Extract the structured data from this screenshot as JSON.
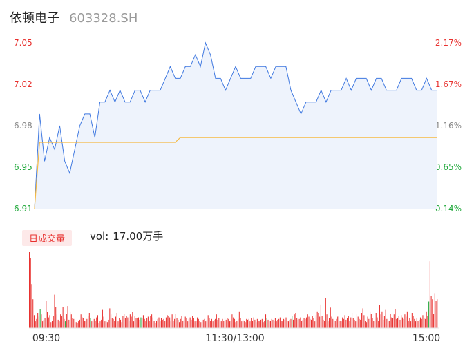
{
  "header": {
    "name": "依顿电子",
    "code": "603328.SH"
  },
  "colors": {
    "up": "#e8312f",
    "down": "#1fa83a",
    "price_line": "#3f78e0",
    "avg_line": "#f5b942",
    "neutral": "#888888"
  },
  "volume_panel": {
    "tag": "日成交量",
    "label": "vol:",
    "value": "17.00万手"
  },
  "chart_data": [
    {
      "type": "line",
      "title": "",
      "y_left_ticks": [
        "7.05",
        "7.02",
        "6.98",
        "6.95",
        "6.91"
      ],
      "y_right_ticks": [
        "2.17%",
        "1.67%",
        "1.16%",
        "0.65%",
        "0.14%"
      ],
      "ylim": [
        6.91,
        7.05
      ],
      "x_ticks": [
        "09:30",
        "11:30/13:00",
        "15:00"
      ],
      "x": [
        0,
        3,
        6,
        9,
        12,
        15,
        18,
        21,
        24,
        27,
        30,
        33,
        36,
        39,
        42,
        45,
        48,
        51,
        54,
        57,
        60,
        63,
        66,
        69,
        72,
        75,
        78,
        81,
        84,
        87,
        90,
        93,
        96,
        99,
        102,
        105,
        108,
        111,
        114,
        117,
        120,
        123,
        126,
        129,
        132,
        135,
        138,
        141,
        144,
        147,
        150,
        153,
        156,
        159,
        162,
        165,
        168,
        171,
        174,
        177,
        180,
        183,
        186,
        189,
        192,
        195,
        198,
        201,
        204,
        207,
        210,
        213,
        216,
        219,
        222,
        225,
        228,
        231,
        234,
        237,
        240
      ],
      "series": [
        {
          "values": [
            6.91,
            6.99,
            6.95,
            6.97,
            6.96,
            6.98,
            6.95,
            6.94,
            6.96,
            6.98,
            6.99,
            6.99,
            6.97,
            7.0,
            7.0,
            7.01,
            7.0,
            7.01,
            7.0,
            7.0,
            7.01,
            7.01,
            7.0,
            7.01,
            7.01,
            7.01,
            7.02,
            7.03,
            7.02,
            7.02,
            7.03,
            7.03,
            7.04,
            7.03,
            7.05,
            7.04,
            7.02,
            7.02,
            7.01,
            7.02,
            7.03,
            7.02,
            7.02,
            7.02,
            7.03,
            7.03,
            7.03,
            7.02,
            7.03,
            7.03,
            7.03,
            7.01,
            7.0,
            6.99,
            7.0,
            7.0,
            7.0,
            7.01,
            7.0,
            7.01,
            7.01,
            7.01,
            7.02,
            7.01,
            7.02,
            7.02,
            7.02,
            7.01,
            7.02,
            7.02,
            7.01,
            7.01,
            7.01,
            7.02,
            7.02,
            7.02,
            7.01,
            7.01,
            7.02,
            7.01,
            7.01
          ]
        },
        {
          "values": [
            6.91,
            6.966,
            6.966,
            6.966,
            6.966,
            6.966,
            6.966,
            6.966,
            6.966,
            6.966,
            6.966,
            6.966,
            6.966,
            6.966,
            6.966,
            6.966,
            6.966,
            6.966,
            6.966,
            6.966,
            6.966,
            6.966,
            6.966,
            6.966,
            6.966,
            6.966,
            6.966,
            6.966,
            6.966,
            6.97,
            6.97,
            6.97,
            6.97,
            6.97,
            6.97,
            6.97,
            6.97,
            6.97,
            6.97,
            6.97,
            6.97,
            6.97,
            6.97,
            6.97,
            6.97,
            6.97,
            6.97,
            6.97,
            6.97,
            6.97,
            6.97,
            6.97,
            6.97,
            6.97,
            6.97,
            6.97,
            6.97,
            6.97,
            6.97,
            6.97,
            6.97,
            6.97,
            6.97,
            6.97,
            6.97,
            6.97,
            6.97,
            6.97,
            6.97,
            6.97,
            6.97,
            6.97,
            6.97,
            6.97,
            6.97,
            6.97,
            6.97,
            6.97,
            6.97,
            6.97,
            6.97
          ]
        }
      ]
    },
    {
      "type": "bar",
      "title": "",
      "x_ticks": [
        "09:30",
        "11:30/13:00",
        "15:00"
      ],
      "values": [
        100,
        92,
        58,
        38,
        17,
        9,
        12,
        20,
        15,
        25,
        18,
        9,
        11,
        13,
        36,
        21,
        14,
        17,
        8,
        10,
        16,
        44,
        28,
        18,
        11,
        9,
        18,
        16,
        28,
        12,
        9,
        19,
        29,
        11,
        21,
        18,
        13,
        12,
        10,
        8,
        7,
        9,
        11,
        18,
        14,
        13,
        10,
        9,
        12,
        16,
        20,
        13,
        9,
        10,
        12,
        10,
        14,
        17,
        7,
        9,
        11,
        24,
        15,
        9,
        9,
        8,
        11,
        26,
        18,
        13,
        12,
        10,
        15,
        20,
        9,
        13,
        11,
        8,
        16,
        19,
        13,
        16,
        14,
        10,
        18,
        15,
        21,
        9,
        16,
        13,
        13,
        14,
        11,
        14,
        13,
        17,
        12,
        9,
        13,
        15,
        10,
        16,
        18,
        14,
        10,
        7,
        10,
        12,
        14,
        9,
        13,
        11,
        12,
        10,
        14,
        17,
        16,
        14,
        9,
        18,
        10,
        12,
        19,
        13,
        11,
        8,
        12,
        16,
        10,
        11,
        15,
        13,
        9,
        12,
        14,
        11,
        16,
        13,
        9,
        10,
        14,
        12,
        10,
        8,
        9,
        11,
        12,
        9,
        11,
        17,
        13,
        10,
        12,
        9,
        11,
        12,
        18,
        11,
        13,
        10,
        9,
        12,
        10,
        14,
        11,
        13,
        12,
        9,
        10,
        18,
        14,
        12,
        8,
        10,
        12,
        22,
        13,
        9,
        11,
        10,
        8,
        12,
        11,
        12,
        9,
        13,
        10,
        14,
        11,
        8,
        12,
        10,
        9,
        11,
        12,
        8,
        10,
        18,
        13,
        11,
        9,
        10,
        12,
        11,
        10,
        13,
        9,
        11,
        12,
        14,
        10,
        9,
        12,
        11,
        14,
        10,
        9,
        11,
        12,
        16,
        11,
        18,
        20,
        13,
        11,
        12,
        14,
        10,
        11,
        13,
        12,
        14,
        18,
        15,
        12,
        11,
        16,
        13,
        9,
        17,
        22,
        20,
        15,
        31,
        16,
        11,
        10,
        40,
        18,
        9,
        13,
        27,
        15,
        12,
        11,
        10,
        12,
        15,
        16,
        10,
        9,
        14,
        12,
        17,
        11,
        13,
        16,
        10,
        14,
        20,
        13,
        11,
        9,
        18,
        15,
        12,
        11,
        20,
        26,
        17,
        10,
        8,
        15,
        12,
        22,
        19,
        13,
        10,
        13,
        20,
        14,
        10,
        30,
        18,
        22,
        11,
        16,
        24,
        12,
        9,
        10,
        19,
        14,
        13,
        18,
        25,
        12,
        13,
        16,
        11,
        17,
        14,
        12,
        18,
        15,
        22,
        10,
        13,
        9,
        20,
        16,
        12,
        9,
        13,
        10,
        11,
        14,
        12,
        17,
        13,
        12,
        22,
        16,
        35,
        88,
        42,
        38,
        19,
        46,
        36,
        38
      ],
      "colors": "up/down"
    }
  ]
}
